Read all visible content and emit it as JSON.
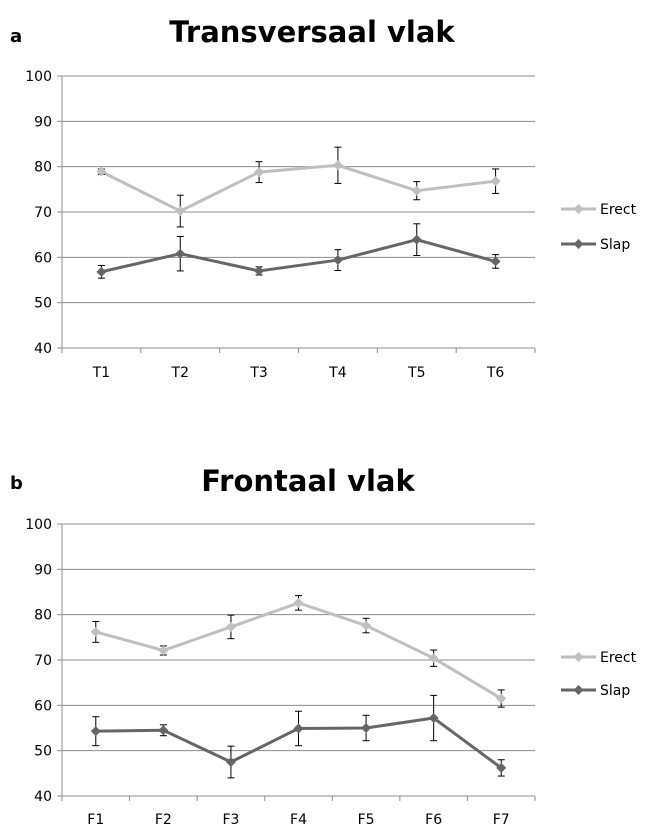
{
  "chart_data": [
    {
      "panel_label": "a",
      "type": "line",
      "title": "Transversaal vlak",
      "categories": [
        "T1",
        "T2",
        "T3",
        "T4",
        "T5",
        "T6"
      ],
      "ylim": [
        40,
        100
      ],
      "yticks": [
        40,
        50,
        60,
        70,
        80,
        90,
        100
      ],
      "grid": true,
      "legend_position": "right",
      "error_bars": true,
      "series": [
        {
          "name": "Erect",
          "color": "#bfbfbf",
          "values": [
            78.9,
            70.2,
            78.8,
            80.3,
            74.7,
            76.8
          ],
          "errors": [
            0.6,
            3.5,
            2.3,
            4.0,
            2.0,
            2.7
          ]
        },
        {
          "name": "Slap",
          "color": "#666666",
          "values": [
            56.8,
            60.8,
            57.0,
            59.4,
            63.9,
            59.1
          ],
          "errors": [
            1.4,
            3.8,
            0.9,
            2.3,
            3.5,
            1.5
          ]
        }
      ]
    },
    {
      "panel_label": "b",
      "type": "line",
      "title": "Frontaal vlak",
      "categories": [
        "F1",
        "F2",
        "F3",
        "F4",
        "F5",
        "F6",
        "F7"
      ],
      "ylim": [
        40,
        100
      ],
      "yticks": [
        40,
        50,
        60,
        70,
        80,
        90,
        100
      ],
      "grid": true,
      "legend_position": "right",
      "error_bars": true,
      "series": [
        {
          "name": "Erect",
          "color": "#bfbfbf",
          "values": [
            76.2,
            72.1,
            77.3,
            82.6,
            77.6,
            70.4,
            61.5
          ],
          "errors": [
            2.3,
            1.0,
            2.6,
            1.6,
            1.6,
            1.8,
            1.9
          ]
        },
        {
          "name": "Slap",
          "color": "#666666",
          "values": [
            54.3,
            54.5,
            47.5,
            54.9,
            55.0,
            57.2,
            46.2
          ],
          "errors": [
            3.2,
            1.2,
            3.5,
            3.8,
            2.8,
            5.0,
            1.8
          ]
        }
      ]
    }
  ]
}
